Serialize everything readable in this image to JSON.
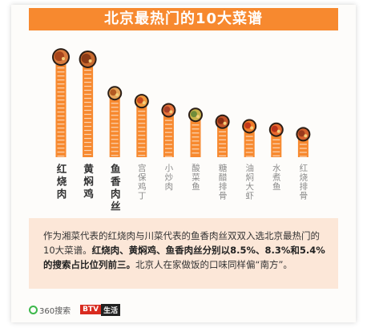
{
  "title": "北京最热门的10大菜谱",
  "description": {
    "part1": "作为湘菜代表的红烧肉与川菜代表的鱼香肉丝双双入选北京最热门的10大菜谱。",
    "part2_bold": "红烧肉、黄焖鸡、鱼香肉丝分别以8.5%、8.3%和5.4%的搜索占比位列前三。",
    "part3": "北京人在家做饭的口味同样偏“南方”。"
  },
  "footer": {
    "logo_360": "360搜索",
    "btv_a": "BTV",
    "btv_b": "生活"
  },
  "colors": {
    "accent": "#f7892f",
    "bar": "#f7892f",
    "bar_stripe": "#fbd6b6",
    "top3_label": "#333333",
    "other_label": "#8a8a8a"
  },
  "chart_data": {
    "type": "bar",
    "categories": [
      "红烧肉",
      "黄焖鸡",
      "鱼香肉丝",
      "宫保鸡丁",
      "小炒肉",
      "酸菜鱼",
      "糖醋排骨",
      "油焖大虾",
      "水煮鱼",
      "红烧排骨"
    ],
    "values": [
      8.5,
      8.3,
      5.4,
      4.7,
      3.9,
      3.5,
      2.9,
      2.5,
      2.2,
      1.8
    ],
    "unit": "%",
    "ylim": [
      0,
      9
    ],
    "grid": false,
    "legend": "none",
    "icons": [
      "hongshaorou-dish-icon",
      "huangmenji-dish-icon",
      "yuxiangrousi-dish-icon",
      "gongbaojiding-dish-icon",
      "xiaochaorou-dish-icon",
      "suancaiyu-dish-icon",
      "tangcupaigu-dish-icon",
      "youmendaxia-dish-icon",
      "shuizhuyu-dish-icon",
      "hongshaopaigu-dish-icon"
    ]
  }
}
